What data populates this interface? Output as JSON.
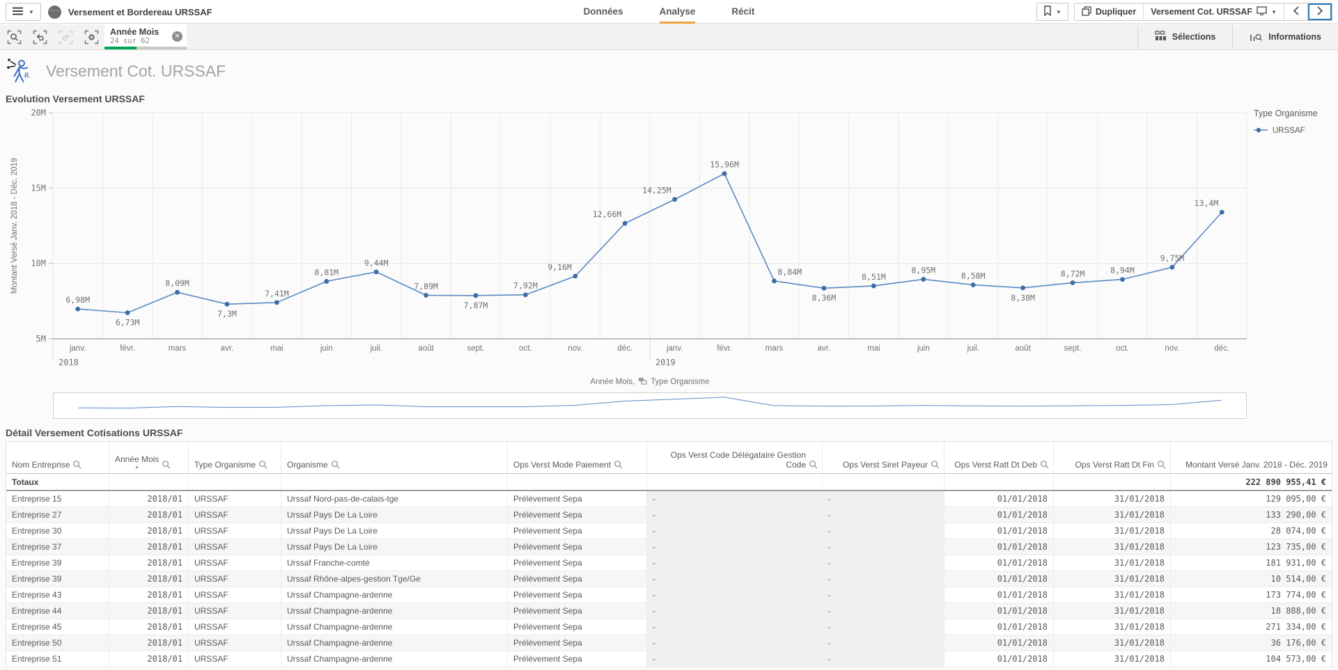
{
  "colors": {
    "accent_orange": "#EDA03C",
    "selection_green": "#00A653",
    "line_blue": "#5A87C4",
    "marker_blue": "#3D6DA4"
  },
  "topbar": {
    "app_title": "Versement et Bordereau URSSAF",
    "tabs": [
      {
        "label": "Données",
        "active": false
      },
      {
        "label": "Analyse",
        "active": true
      },
      {
        "label": "Récit",
        "active": false
      }
    ],
    "duplicate_label": "Dupliquer",
    "sheet_selector_label": "Versement Cot. URSSAF"
  },
  "selections_bar": {
    "chip": {
      "field": "Année Mois",
      "status": "24 sur 62",
      "progress_pct": 39
    },
    "selections_label": "Sélections",
    "informations_label": "Informations"
  },
  "sheet": {
    "title": "Versement Cot. URSSAF"
  },
  "chart_data": {
    "type": "line",
    "title": "Evolution Versement URSSAF",
    "ylabel": "Montant Versé Janv. 2018 - Déc. 2019",
    "xlabel": "Année Mois, Type Organisme",
    "xlabel_parts": [
      "Année Mois,",
      "Type Organisme"
    ],
    "legend_title": "Type Organisme",
    "legend_position": "right",
    "grid": true,
    "ylim": [
      5,
      20
    ],
    "yticks": [
      {
        "label": "20M",
        "value": 20
      },
      {
        "label": "15M",
        "value": 15
      },
      {
        "label": "10M",
        "value": 10
      },
      {
        "label": "5M",
        "value": 5
      }
    ],
    "categories": [
      "janv.",
      "févr.",
      "mars",
      "avr.",
      "mai",
      "juin",
      "juil.",
      "août",
      "sept.",
      "oct.",
      "nov.",
      "déc.",
      "janv.",
      "févr.",
      "mars",
      "avr.",
      "mai",
      "juin",
      "juil.",
      "août",
      "sept.",
      "oct.",
      "nov.",
      "déc."
    ],
    "years": [
      {
        "label": "2018",
        "slot": 0
      },
      {
        "label": "2019",
        "slot": 12
      }
    ],
    "series": [
      {
        "name": "URSSAF",
        "values": [
          6.98,
          6.73,
          8.09,
          7.3,
          7.41,
          8.81,
          9.44,
          7.89,
          7.87,
          7.92,
          9.16,
          12.66,
          14.25,
          15.96,
          8.84,
          8.36,
          8.51,
          8.95,
          8.58,
          8.38,
          8.72,
          8.94,
          9.75,
          13.4
        ]
      }
    ],
    "point_labels": [
      "6,98M",
      "6,73M",
      "8,09M",
      "7,3M",
      "7,41M",
      "8,81M",
      "9,44M",
      "7,89M",
      "7,87M",
      "7,92M",
      "9,16M",
      "12,66M",
      "14,25M",
      "15,96M",
      "8,84M",
      "8,36M",
      "8,51M",
      "8,95M",
      "8,58M",
      "8,38M",
      "8,72M",
      "8,94M",
      "9,75M",
      "13,4M"
    ],
    "label_sides": [
      "above",
      "below",
      "above",
      "below",
      "above",
      "above",
      "above",
      "above",
      "below",
      "above",
      "above",
      "above",
      "above",
      "above",
      "above",
      "below",
      "above",
      "above",
      "above",
      "below",
      "above",
      "above",
      "above",
      "above"
    ],
    "label_anchors": {
      "10": "end",
      "11": "end",
      "12": "end",
      "14": "start",
      "23": "end"
    }
  },
  "table": {
    "title": "Détail Versement Cotisations URSSAF",
    "columns": [
      {
        "label": "Nom Entreprise",
        "header_align": "left",
        "value_align": "left",
        "searchable": true,
        "sorted": false,
        "numeric": false,
        "null_col": false
      },
      {
        "label": "Année Mois",
        "header_align": "left",
        "value_align": "right",
        "searchable": true,
        "sorted": true,
        "numeric": true,
        "null_col": false
      },
      {
        "label": "Type Organisme",
        "header_align": "left",
        "value_align": "left",
        "searchable": true,
        "sorted": false,
        "numeric": false,
        "null_col": false
      },
      {
        "label": "Organisme",
        "header_align": "left",
        "value_align": "left",
        "searchable": true,
        "sorted": false,
        "numeric": false,
        "null_col": false
      },
      {
        "label": "Ops Verst Mode Paiement",
        "header_align": "left",
        "value_align": "left",
        "searchable": true,
        "sorted": false,
        "numeric": false,
        "null_col": false
      },
      {
        "label": "Ops Verst Code Délégataire Gestion Code",
        "header_align": "right",
        "value_align": "left",
        "searchable": true,
        "sorted": false,
        "numeric": false,
        "null_col": true
      },
      {
        "label": "Ops Verst Siret Payeur",
        "header_align": "right",
        "value_align": "left",
        "searchable": true,
        "sorted": false,
        "numeric": false,
        "null_col": true
      },
      {
        "label": "Ops Verst Ratt Dt Deb",
        "header_align": "right",
        "value_align": "right",
        "searchable": true,
        "sorted": false,
        "numeric": true,
        "null_col": false
      },
      {
        "label": "Ops Verst Ratt Dt Fin",
        "header_align": "right",
        "value_align": "right",
        "searchable": true,
        "sorted": false,
        "numeric": true,
        "null_col": false
      },
      {
        "label": "Montant Versé Janv. 2018 - Déc. 2019",
        "header_align": "right",
        "value_align": "right",
        "searchable": false,
        "sorted": false,
        "numeric": true,
        "null_col": false
      }
    ],
    "totals": {
      "label": "Totaux",
      "amount": "222 890 955,41 €"
    },
    "rows": [
      [
        "Entreprise 15",
        "2018/01",
        "URSSAF",
        "Urssaf Nord-pas-de-calais-tge",
        "Prélèvement Sepa",
        "-",
        "-",
        "01/01/2018",
        "31/01/2018",
        "129 095,00 €"
      ],
      [
        "Entreprise 27",
        "2018/01",
        "URSSAF",
        "Urssaf Pays De La Loire",
        "Prélèvement Sepa",
        "-",
        "-",
        "01/01/2018",
        "31/01/2018",
        "133 290,00 €"
      ],
      [
        "Entreprise 30",
        "2018/01",
        "URSSAF",
        "Urssaf Pays De La Loire",
        "Prélèvement Sepa",
        "-",
        "-",
        "01/01/2018",
        "31/01/2018",
        "28 074,00 €"
      ],
      [
        "Entreprise 37",
        "2018/01",
        "URSSAF",
        "Urssaf Pays De La Loire",
        "Prélèvement Sepa",
        "-",
        "-",
        "01/01/2018",
        "31/01/2018",
        "123 735,00 €"
      ],
      [
        "Entreprise 39",
        "2018/01",
        "URSSAF",
        "Urssaf Franche-comté",
        "Prélèvement Sepa",
        "-",
        "-",
        "01/01/2018",
        "31/01/2018",
        "181 931,00 €"
      ],
      [
        "Entreprise 39",
        "2018/01",
        "URSSAF",
        "Urssaf Rhône-alpes-gestion Tge/Ge",
        "Prélèvement Sepa",
        "-",
        "-",
        "01/01/2018",
        "31/01/2018",
        "10 514,00 €"
      ],
      [
        "Entreprise 43",
        "2018/01",
        "URSSAF",
        "Urssaf Champagne-ardenne",
        "Prélèvement Sepa",
        "-",
        "-",
        "01/01/2018",
        "31/01/2018",
        "173 774,00 €"
      ],
      [
        "Entreprise 44",
        "2018/01",
        "URSSAF",
        "Urssaf Champagne-ardenne",
        "Prélèvement Sepa",
        "-",
        "-",
        "01/01/2018",
        "31/01/2018",
        "18 888,00 €"
      ],
      [
        "Entreprise 45",
        "2018/01",
        "URSSAF",
        "Urssaf Champagne-ardenne",
        "Prélèvement Sepa",
        "-",
        "-",
        "01/01/2018",
        "31/01/2018",
        "271 334,00 €"
      ],
      [
        "Entreprise 50",
        "2018/01",
        "URSSAF",
        "Urssaf Champagne-ardenne",
        "Prélèvement Sepa",
        "-",
        "-",
        "01/01/2018",
        "31/01/2018",
        "36 176,00 €"
      ],
      [
        "Entreprise 51",
        "2018/01",
        "URSSAF",
        "Urssaf Champagne-ardenne",
        "Prélèvement Sepa",
        "-",
        "-",
        "01/01/2018",
        "31/01/2018",
        "104 573,00 €"
      ]
    ]
  }
}
